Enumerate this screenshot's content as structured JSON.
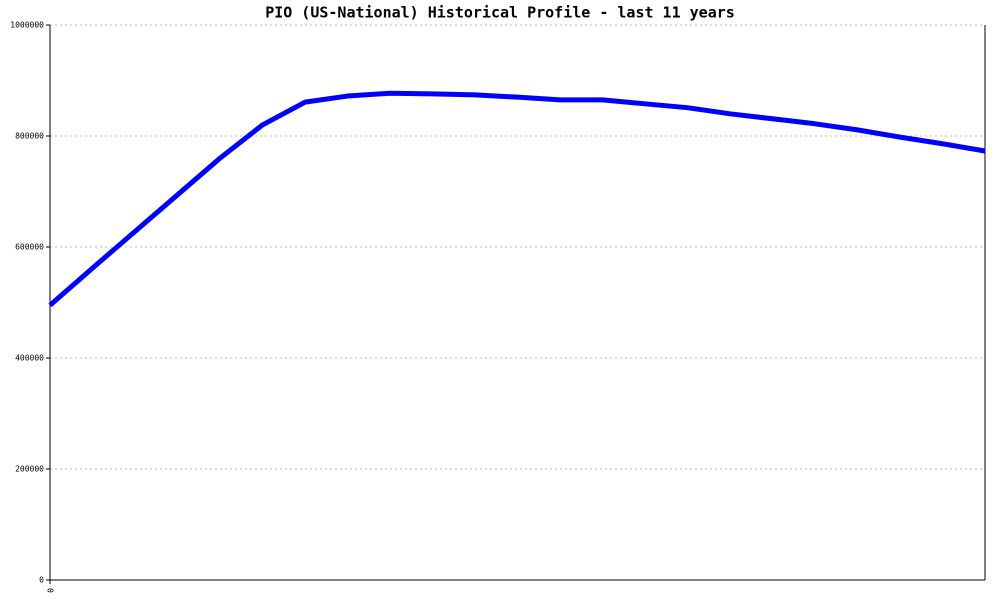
{
  "chart_data": {
    "type": "line",
    "title": "PIO (US-National) Historical Profile - last 11 years",
    "x": [
      0,
      1,
      2,
      3,
      4,
      5,
      6,
      7,
      8,
      9,
      10,
      11,
      12,
      13,
      14,
      15,
      16,
      17,
      18,
      19,
      20,
      21,
      22
    ],
    "series": [
      {
        "color": "#0000ff",
        "values": [
          495000,
          562000,
          628000,
          694000,
          760000,
          820000,
          861000,
          872000,
          877000,
          876000,
          874000,
          870000,
          865000,
          865000,
          858000,
          851000,
          840000,
          831000,
          822000,
          811000,
          798000,
          786000,
          773000
        ]
      }
    ],
    "xlim": [
      0,
      22
    ],
    "xticks": [
      0
    ],
    "ylim": [
      0,
      1000000
    ],
    "yticks": [
      0,
      200000,
      400000,
      600000,
      800000,
      1000000
    ],
    "grid": true
  }
}
